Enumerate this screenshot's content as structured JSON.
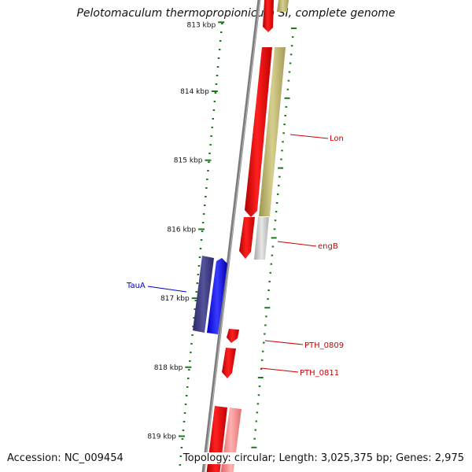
{
  "title": "Pelotomaculum thermopropionicum SI, complete genome",
  "footer": {
    "accession": "Accession: NC_009454",
    "topology": "Topology: circular; Length: 3,025,375 bp; Genes: 2,975"
  },
  "ruler": {
    "ticks": [
      {
        "kbp": 813,
        "label": "813 kbp"
      },
      {
        "kbp": 814,
        "label": "814 kbp"
      },
      {
        "kbp": 815,
        "label": "815 kbp"
      },
      {
        "kbp": 816,
        "label": "816 kbp"
      },
      {
        "kbp": 817,
        "label": "817 kbp"
      },
      {
        "kbp": 818,
        "label": "818 kbp"
      },
      {
        "kbp": 819,
        "label": "819 kbp"
      }
    ]
  },
  "genes": [
    {
      "name": "Lon",
      "color": "#cc0000"
    },
    {
      "name": "engB",
      "color": "#cc0000"
    },
    {
      "name": "TauA",
      "color": "#0000cc"
    },
    {
      "name": "PTH_0809",
      "color": "#cc0000"
    },
    {
      "name": "PTH_0811",
      "color": "#cc0000"
    }
  ],
  "colors": {
    "forward_cds": "#ff0000",
    "reverse_cds_pale": "#ff9090",
    "blue_cds": "#1a1aff",
    "navy_cds": "#3c3a80",
    "olive_feature": "#bdb46a",
    "grey_feature": "#c8c8c8",
    "backbone": "#808080",
    "tick_green": "#1b7a1b"
  }
}
